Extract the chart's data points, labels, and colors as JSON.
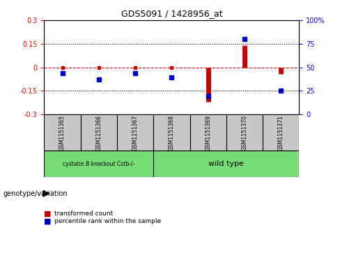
{
  "title": "GDS5091 / 1428956_at",
  "samples": [
    "GSM1151365",
    "GSM1151366",
    "GSM1151367",
    "GSM1151368",
    "GSM1151369",
    "GSM1151370",
    "GSM1151371"
  ],
  "red_values": [
    0.0,
    0.005,
    0.005,
    0.005,
    -0.22,
    0.14,
    -0.04
  ],
  "blue_values": [
    44,
    37,
    44,
    39,
    19,
    80,
    25
  ],
  "ylim_left": [
    -0.3,
    0.3
  ],
  "ylim_right": [
    0,
    100
  ],
  "yticks_left": [
    -0.3,
    -0.15,
    0.0,
    0.15,
    0.3
  ],
  "yticks_right": [
    0,
    25,
    50,
    75,
    100
  ],
  "ytick_labels_left": [
    "-0.3",
    "-0.15",
    "0",
    "0.15",
    "0.3"
  ],
  "ytick_labels_right": [
    "0",
    "25",
    "50",
    "75",
    "100%"
  ],
  "hlines": [
    0.15,
    -0.15
  ],
  "group1_label": "cystatin B knockout Cstb-/-",
  "group2_label": "wild type",
  "group1_indices": [
    0,
    1,
    2
  ],
  "group2_indices": [
    3,
    4,
    5,
    6
  ],
  "green_color": "#77dd77",
  "bar_color": "#cc0000",
  "dot_color": "#0000cc",
  "legend_red_label": "transformed count",
  "legend_blue_label": "percentile rank within the sample",
  "bg_color": "#ffffff",
  "plot_bg": "#ffffff",
  "sample_box_color": "#c8c8c8",
  "genotype_label": "genotype/variation"
}
